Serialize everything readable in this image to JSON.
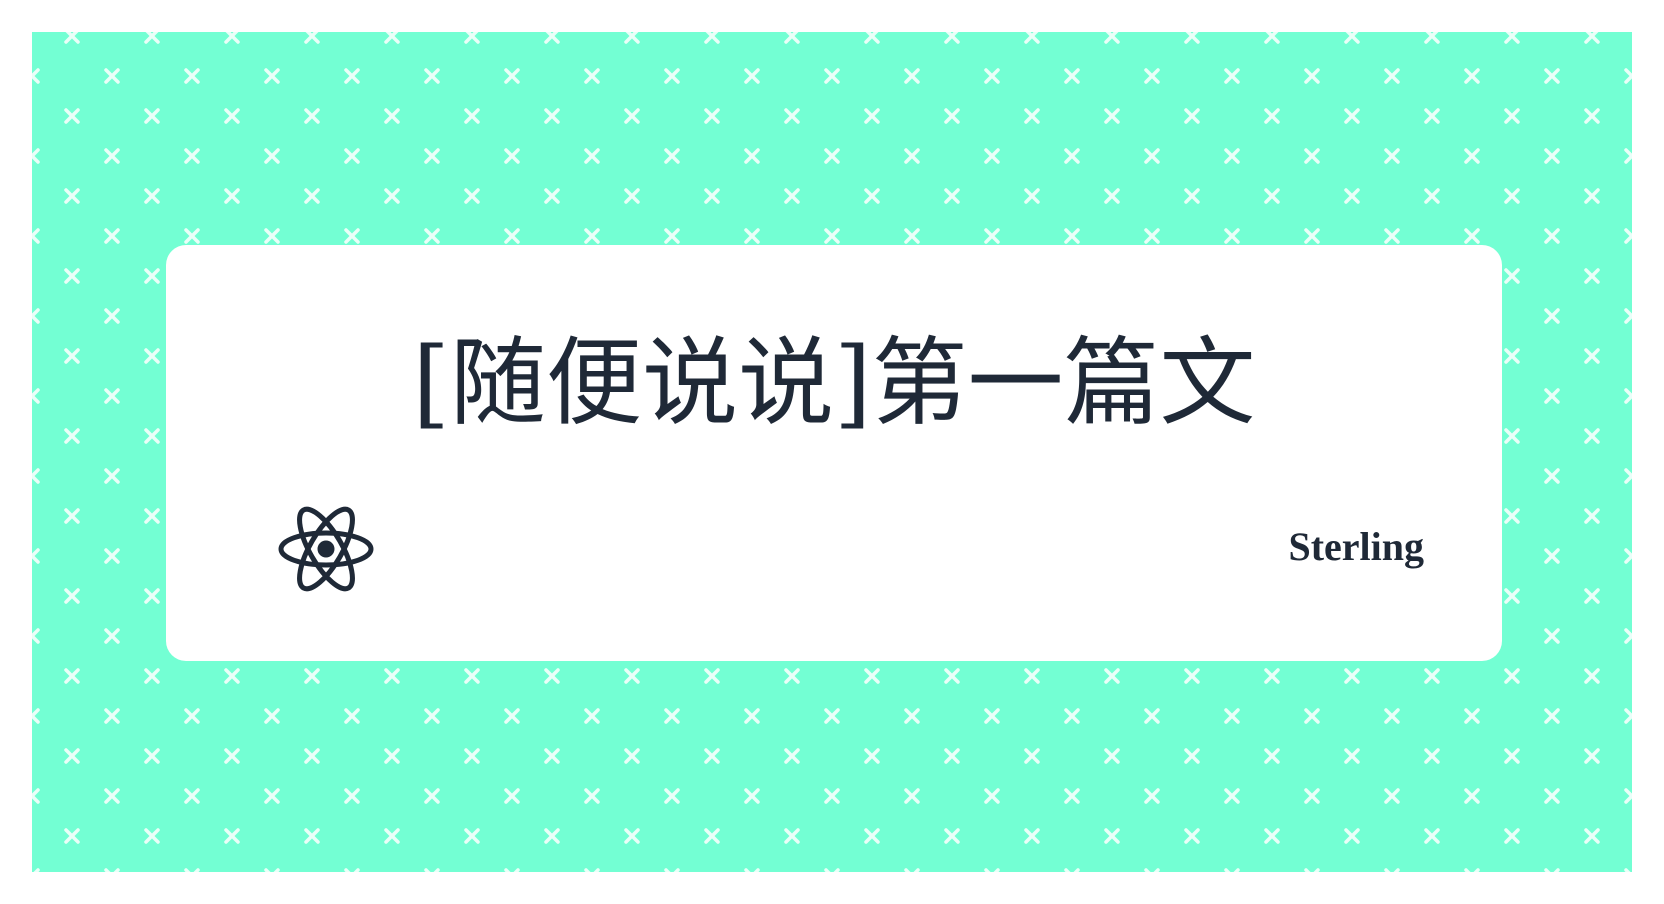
{
  "colors": {
    "background": "#73ffd3",
    "pattern_mark": "#ffffff",
    "card": "#ffffff",
    "text": "#1f2937"
  },
  "card": {
    "title": "[随便说说]第一篇文",
    "author": "Sterling",
    "logo_icon": "react-atom-icon"
  }
}
